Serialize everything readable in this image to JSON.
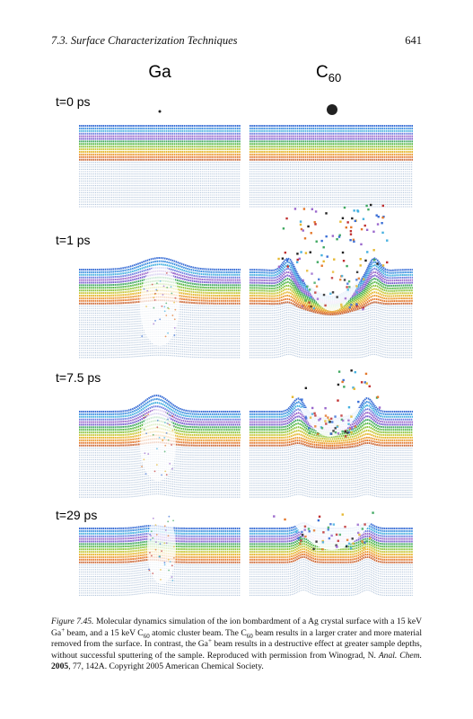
{
  "header": {
    "section": "7.3. Surface Characterization Techniques",
    "page_number": "641"
  },
  "figure": {
    "column_labels": {
      "ga": "Ga",
      "c60_base": "C",
      "c60_sub": "60"
    },
    "row_labels": [
      "t=0 ps",
      "t=1 ps",
      "t=7.5 ps",
      "t=29 ps"
    ]
  },
  "caption": {
    "runs": [
      "Figure 7.45.",
      " Molecular dynamics simulation of the ion bombardment of a Ag crystal surface with a 15 keV Ga",
      "+",
      " beam, and a 15 keV C",
      "60",
      " atomic cluster beam. The C",
      "60",
      " beam results in a larger crater and more material removed from the surface. In contrast, the Ga",
      "+",
      " beam results in a destructive effect at greater sample depths, without successful sputtering of the sample. Reproduced with permission from Winograd, N. ",
      "Anal. Chem.",
      " 2005",
      ", 77, 142A. Copyright 2005 American Chemical Society."
    ]
  }
}
